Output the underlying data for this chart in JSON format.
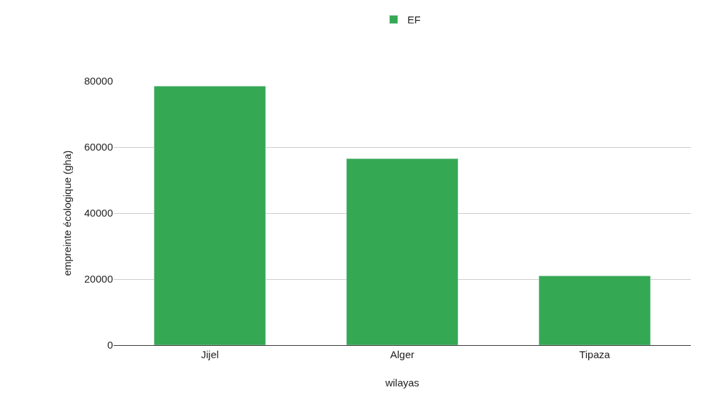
{
  "chart_data": {
    "type": "bar",
    "xlabel": "wilayas",
    "ylabel": "empreinte écologique (gha)",
    "categories": [
      "Jijel",
      "Alger",
      "Tipaza"
    ],
    "series": [
      {
        "name": "EF",
        "color": "#34a853",
        "values": [
          78500,
          56500,
          21000
        ]
      }
    ],
    "ylim": [
      0,
      80000
    ],
    "yticks": [
      0,
      20000,
      40000,
      60000,
      80000
    ],
    "grid": "y",
    "legend": "top"
  }
}
